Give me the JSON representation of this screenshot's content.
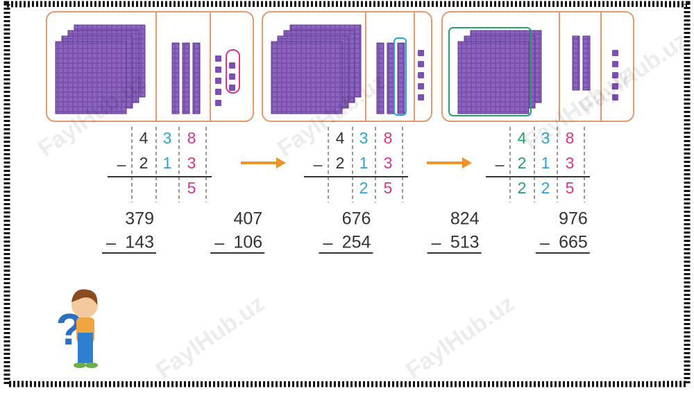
{
  "operator": "–",
  "watermark": "FaylHub.uz",
  "question_mark": "?",
  "worked_examples": [
    {
      "minuend": [
        "4",
        "3",
        "8"
      ],
      "subtrahend": [
        "2",
        "1",
        "3"
      ],
      "result": [
        "5"
      ]
    },
    {
      "minuend": [
        "4",
        "3",
        "8"
      ],
      "subtrahend": [
        "2",
        "1",
        "3"
      ],
      "result": [
        "2",
        "5"
      ]
    },
    {
      "minuend": [
        "4",
        "3",
        "8"
      ],
      "subtrahend": [
        "2",
        "1",
        "3"
      ],
      "result": [
        "2",
        "2",
        "5"
      ]
    }
  ],
  "exercises": [
    {
      "minuend": 379,
      "subtrahend": 143
    },
    {
      "minuend": 407,
      "subtrahend": 106
    },
    {
      "minuend": 676,
      "subtrahend": 254
    },
    {
      "minuend": 824,
      "subtrahend": 513
    },
    {
      "minuend": 976,
      "subtrahend": 665
    }
  ]
}
